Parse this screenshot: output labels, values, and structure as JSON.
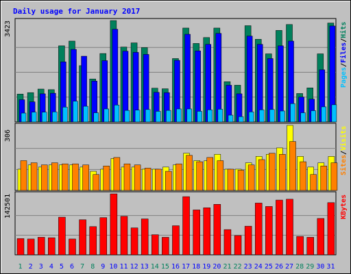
{
  "title": "Daily usage for January 2017",
  "colors": {
    "background": "#c0c0c0",
    "hits": "#00805c",
    "files": "#0000ff",
    "pages": "#00c0ff",
    "visits": "#ffff00",
    "sites": "#ff8000",
    "kbytes": "#ff0000",
    "weekend_day_label": "#00805c",
    "weekday_day_label": "#0000ff"
  },
  "chart_data": [
    {
      "type": "bar",
      "name": "hits-files-pages",
      "categories": [
        "1",
        "2",
        "3",
        "4",
        "5",
        "6",
        "7",
        "8",
        "9",
        "10",
        "11",
        "12",
        "13",
        "14",
        "15",
        "16",
        "17",
        "18",
        "19",
        "20",
        "21",
        "22",
        "23",
        "24",
        "25",
        "26",
        "27",
        "28",
        "29",
        "30",
        "31"
      ],
      "ytick": "3423",
      "ylim": [
        0,
        3423
      ],
      "right_axis_labels": [
        {
          "text": "Pages",
          "color": "#00c0ff"
        },
        {
          "text": "/",
          "color": "#000000"
        },
        {
          "text": "Files",
          "color": "#0000ff"
        },
        {
          "text": "/",
          "color": "#000000"
        },
        {
          "text": "Hits",
          "color": "#00805c"
        }
      ],
      "series": [
        {
          "name": "Hits",
          "values": [
            940,
            990,
            1110,
            1090,
            2570,
            2730,
            1900,
            1450,
            2310,
            3423,
            2530,
            2670,
            2510,
            1140,
            1120,
            2140,
            3170,
            2650,
            2850,
            3170,
            1360,
            1240,
            3250,
            2790,
            2300,
            3090,
            3290,
            960,
            1150,
            2300,
            3340
          ]
        },
        {
          "name": "Files",
          "values": [
            750,
            680,
            950,
            970,
            2030,
            2450,
            2220,
            1380,
            2070,
            3130,
            2390,
            2350,
            2280,
            1000,
            990,
            2080,
            2960,
            2400,
            2620,
            2990,
            1240,
            950,
            2900,
            2620,
            2140,
            2570,
            2730,
            840,
            770,
            1760,
            3240
          ]
        },
        {
          "name": "Pages",
          "values": [
            300,
            330,
            330,
            340,
            500,
            700,
            530,
            310,
            440,
            570,
            390,
            400,
            420,
            360,
            390,
            440,
            440,
            360,
            410,
            430,
            230,
            180,
            340,
            410,
            420,
            370,
            620,
            310,
            380,
            510,
            580
          ]
        }
      ]
    },
    {
      "type": "bar",
      "name": "visits-sites",
      "categories": [
        "1",
        "2",
        "3",
        "4",
        "5",
        "6",
        "7",
        "8",
        "9",
        "10",
        "11",
        "12",
        "13",
        "14",
        "15",
        "16",
        "17",
        "18",
        "19",
        "20",
        "21",
        "22",
        "23",
        "24",
        "25",
        "26",
        "27",
        "28",
        "29",
        "30",
        "31"
      ],
      "ytick": "306",
      "ylim": [
        0,
        306
      ],
      "right_axis_labels": [
        {
          "text": "Sites",
          "color": "#ff8000"
        },
        {
          "text": "/",
          "color": "#000000"
        },
        {
          "text": "Visits",
          "color": "#ffff00"
        }
      ],
      "series": [
        {
          "name": "Visits",
          "values": [
            100,
            120,
            110,
            120,
            120,
            120,
            110,
            90,
            100,
            150,
            110,
            110,
            100,
            100,
            110,
            120,
            175,
            140,
            140,
            170,
            100,
            100,
            130,
            160,
            170,
            200,
            306,
            160,
            110,
            130,
            160
          ]
        },
        {
          "name": "Sites",
          "values": [
            140,
            130,
            120,
            130,
            125,
            125,
            120,
            75,
            115,
            155,
            125,
            120,
            105,
            100,
            90,
            125,
            165,
            135,
            155,
            140,
            100,
            95,
            120,
            145,
            175,
            170,
            230,
            135,
            75,
            115,
            130
          ]
        }
      ]
    },
    {
      "type": "bar",
      "name": "kbytes",
      "categories": [
        "1",
        "2",
        "3",
        "4",
        "5",
        "6",
        "7",
        "8",
        "9",
        "10",
        "11",
        "12",
        "13",
        "14",
        "15",
        "16",
        "17",
        "18",
        "19",
        "20",
        "21",
        "22",
        "23",
        "24",
        "25",
        "26",
        "27",
        "28",
        "29",
        "30",
        "31"
      ],
      "ytick": "142501",
      "ylim": [
        0,
        142501
      ],
      "right_axis_labels": [
        {
          "text": "KBytes",
          "color": "#ff0000"
        }
      ],
      "series": [
        {
          "name": "KBytes",
          "values": [
            38000,
            37000,
            41000,
            40000,
            88000,
            37000,
            82000,
            66000,
            87000,
            142501,
            90000,
            63000,
            84000,
            47000,
            41000,
            68000,
            136000,
            105000,
            110000,
            118000,
            59000,
            45000,
            67000,
            121000,
            113000,
            128000,
            130000,
            43000,
            41000,
            85000,
            122000
          ]
        }
      ]
    }
  ]
}
